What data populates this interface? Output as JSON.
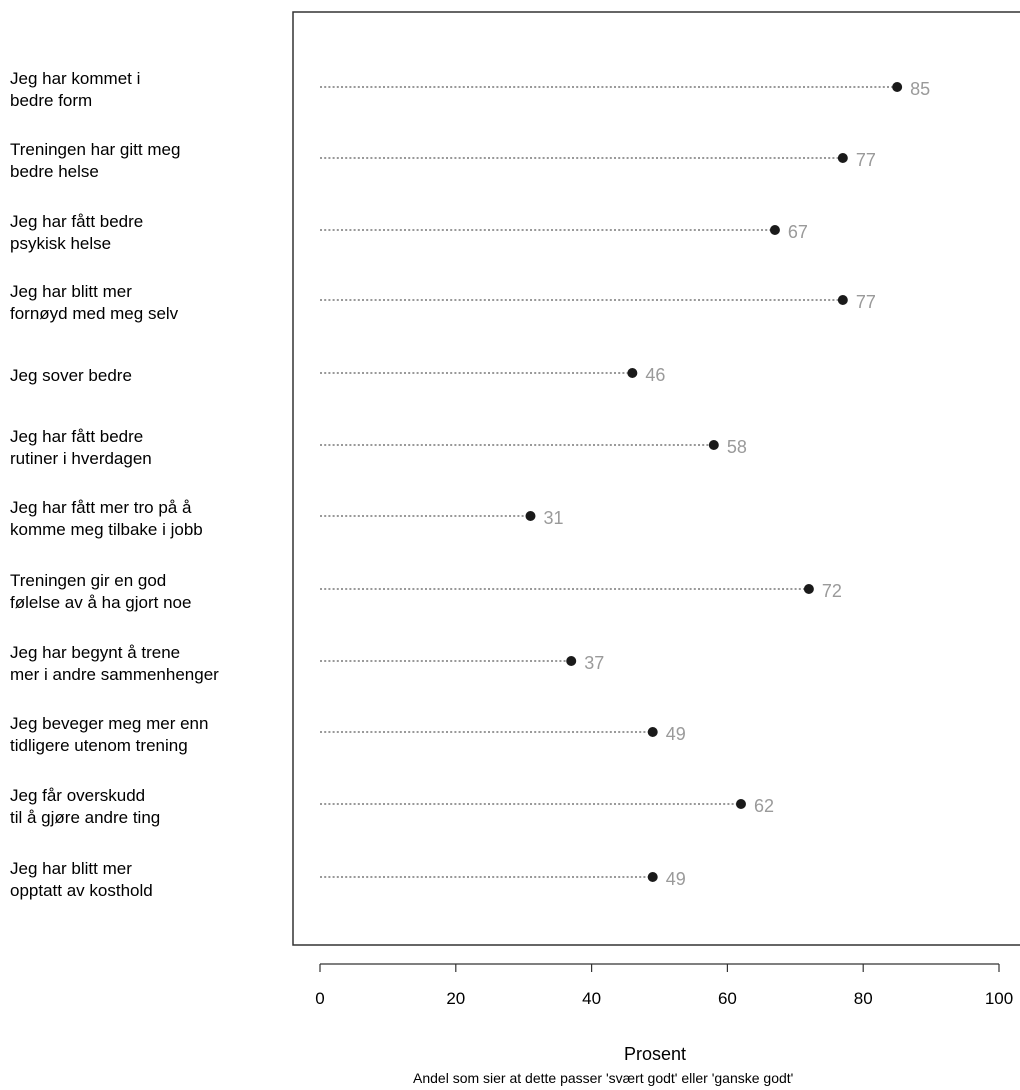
{
  "chart_data": {
    "type": "dot",
    "categories": [
      "Jeg har kommet i\nbedre form",
      "Treningen har gitt meg\nbedre helse",
      "Jeg har fått bedre\npsykisk helse",
      "Jeg har blitt mer\nfornøyd med meg selv",
      "Jeg sover bedre",
      "Jeg har fått bedre\nrutiner i hverdagen",
      "Jeg har fått mer tro på å\nkomme meg tilbake i jobb",
      "Treningen gir en god\nfølelse av å ha gjort noe",
      "Jeg har begynt å trene\nmer i andre sammenhenger",
      "Jeg beveger meg mer enn\ntidligere utenom trening",
      "Jeg får overskudd\ntil å gjøre andre ting",
      "Jeg har blitt mer\nopptatt av kosthold"
    ],
    "values": [
      85,
      77,
      67,
      77,
      46,
      58,
      31,
      72,
      37,
      49,
      62,
      49
    ],
    "value_labels": [
      "85",
      "77",
      "67",
      "77",
      "46",
      "58",
      "31",
      "72",
      "37",
      "49",
      "62",
      "49"
    ],
    "xlabel": "Prosent",
    "note": "Andel som sier at dette passer 'svært godt' eller 'ganske godt'",
    "xlim": [
      0,
      100
    ],
    "xticks": [
      0,
      20,
      40,
      60,
      80,
      100
    ],
    "xtick_labels": [
      "0",
      "20",
      "40",
      "60",
      "80",
      "100"
    ],
    "colors": {
      "point": "#1a1a1a",
      "value_label": "#9a9a9a",
      "leader": "#333333",
      "frame": "#333333"
    }
  }
}
